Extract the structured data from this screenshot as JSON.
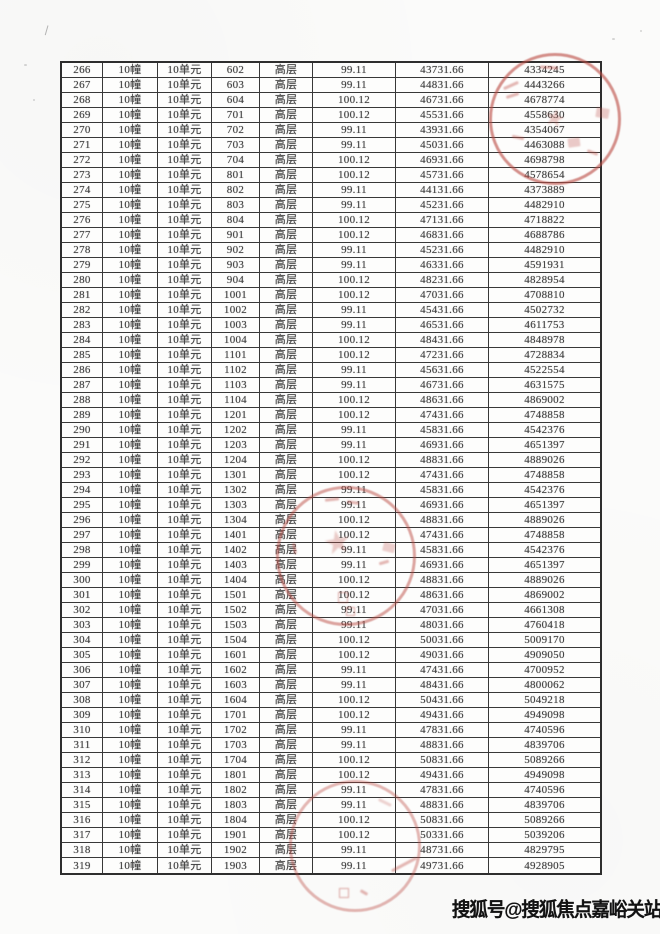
{
  "watermark": {
    "text": "搜狐号@搜狐焦点嘉峪关站"
  },
  "seal": {
    "color": "#bb4c44"
  },
  "icons": {
    "star": "★"
  },
  "table": {
    "rows": [
      [
        "266",
        "10幢",
        "10单元",
        "602",
        "高层",
        "99.11",
        "43731.66",
        "4334245"
      ],
      [
        "267",
        "10幢",
        "10单元",
        "603",
        "高层",
        "99.11",
        "44831.66",
        "4443266"
      ],
      [
        "268",
        "10幢",
        "10单元",
        "604",
        "高层",
        "100.12",
        "46731.66",
        "4678774"
      ],
      [
        "269",
        "10幢",
        "10单元",
        "701",
        "高层",
        "100.12",
        "45531.66",
        "4558630"
      ],
      [
        "270",
        "10幢",
        "10单元",
        "702",
        "高层",
        "99.11",
        "43931.66",
        "4354067"
      ],
      [
        "271",
        "10幢",
        "10单元",
        "703",
        "高层",
        "99.11",
        "45031.66",
        "4463088"
      ],
      [
        "272",
        "10幢",
        "10单元",
        "704",
        "高层",
        "100.12",
        "46931.66",
        "4698798"
      ],
      [
        "273",
        "10幢",
        "10单元",
        "801",
        "高层",
        "100.12",
        "45731.66",
        "4578654"
      ],
      [
        "274",
        "10幢",
        "10单元",
        "802",
        "高层",
        "99.11",
        "44131.66",
        "4373889"
      ],
      [
        "275",
        "10幢",
        "10单元",
        "803",
        "高层",
        "99.11",
        "45231.66",
        "4482910"
      ],
      [
        "276",
        "10幢",
        "10单元",
        "804",
        "高层",
        "100.12",
        "47131.66",
        "4718822"
      ],
      [
        "277",
        "10幢",
        "10单元",
        "901",
        "高层",
        "100.12",
        "46831.66",
        "4688786"
      ],
      [
        "278",
        "10幢",
        "10单元",
        "902",
        "高层",
        "99.11",
        "45231.66",
        "4482910"
      ],
      [
        "279",
        "10幢",
        "10单元",
        "903",
        "高层",
        "99.11",
        "46331.66",
        "4591931"
      ],
      [
        "280",
        "10幢",
        "10单元",
        "904",
        "高层",
        "100.12",
        "48231.66",
        "4828954"
      ],
      [
        "281",
        "10幢",
        "10单元",
        "1001",
        "高层",
        "100.12",
        "47031.66",
        "4708810"
      ],
      [
        "282",
        "10幢",
        "10单元",
        "1002",
        "高层",
        "99.11",
        "45431.66",
        "4502732"
      ],
      [
        "283",
        "10幢",
        "10单元",
        "1003",
        "高层",
        "99.11",
        "46531.66",
        "4611753"
      ],
      [
        "284",
        "10幢",
        "10单元",
        "1004",
        "高层",
        "100.12",
        "48431.66",
        "4848978"
      ],
      [
        "285",
        "10幢",
        "10单元",
        "1101",
        "高层",
        "100.12",
        "47231.66",
        "4728834"
      ],
      [
        "286",
        "10幢",
        "10单元",
        "1102",
        "高层",
        "99.11",
        "45631.66",
        "4522554"
      ],
      [
        "287",
        "10幢",
        "10单元",
        "1103",
        "高层",
        "99.11",
        "46731.66",
        "4631575"
      ],
      [
        "288",
        "10幢",
        "10单元",
        "1104",
        "高层",
        "100.12",
        "48631.66",
        "4869002"
      ],
      [
        "289",
        "10幢",
        "10单元",
        "1201",
        "高层",
        "100.12",
        "47431.66",
        "4748858"
      ],
      [
        "290",
        "10幢",
        "10单元",
        "1202",
        "高层",
        "99.11",
        "45831.66",
        "4542376"
      ],
      [
        "291",
        "10幢",
        "10单元",
        "1203",
        "高层",
        "99.11",
        "46931.66",
        "4651397"
      ],
      [
        "292",
        "10幢",
        "10单元",
        "1204",
        "高层",
        "100.12",
        "48831.66",
        "4889026"
      ],
      [
        "293",
        "10幢",
        "10单元",
        "1301",
        "高层",
        "100.12",
        "47431.66",
        "4748858"
      ],
      [
        "294",
        "10幢",
        "10单元",
        "1302",
        "高层",
        "99.11",
        "45831.66",
        "4542376"
      ],
      [
        "295",
        "10幢",
        "10单元",
        "1303",
        "高层",
        "99.11",
        "46931.66",
        "4651397"
      ],
      [
        "296",
        "10幢",
        "10单元",
        "1304",
        "高层",
        "100.12",
        "48831.66",
        "4889026"
      ],
      [
        "297",
        "10幢",
        "10单元",
        "1401",
        "高层",
        "100.12",
        "47431.66",
        "4748858"
      ],
      [
        "298",
        "10幢",
        "10单元",
        "1402",
        "高层",
        "99.11",
        "45831.66",
        "4542376"
      ],
      [
        "299",
        "10幢",
        "10单元",
        "1403",
        "高层",
        "99.11",
        "46931.66",
        "4651397"
      ],
      [
        "300",
        "10幢",
        "10单元",
        "1404",
        "高层",
        "100.12",
        "48831.66",
        "4889026"
      ],
      [
        "301",
        "10幢",
        "10单元",
        "1501",
        "高层",
        "100.12",
        "48631.66",
        "4869002"
      ],
      [
        "302",
        "10幢",
        "10单元",
        "1502",
        "高层",
        "99.11",
        "47031.66",
        "4661308"
      ],
      [
        "303",
        "10幢",
        "10单元",
        "1503",
        "高层",
        "99.11",
        "48031.66",
        "4760418"
      ],
      [
        "304",
        "10幢",
        "10单元",
        "1504",
        "高层",
        "100.12",
        "50031.66",
        "5009170"
      ],
      [
        "305",
        "10幢",
        "10单元",
        "1601",
        "高层",
        "100.12",
        "49031.66",
        "4909050"
      ],
      [
        "306",
        "10幢",
        "10单元",
        "1602",
        "高层",
        "99.11",
        "47431.66",
        "4700952"
      ],
      [
        "307",
        "10幢",
        "10单元",
        "1603",
        "高层",
        "99.11",
        "48431.66",
        "4800062"
      ],
      [
        "308",
        "10幢",
        "10单元",
        "1604",
        "高层",
        "100.12",
        "50431.66",
        "5049218"
      ],
      [
        "309",
        "10幢",
        "10单元",
        "1701",
        "高层",
        "100.12",
        "49431.66",
        "4949098"
      ],
      [
        "310",
        "10幢",
        "10单元",
        "1702",
        "高层",
        "99.11",
        "47831.66",
        "4740596"
      ],
      [
        "311",
        "10幢",
        "10单元",
        "1703",
        "高层",
        "99.11",
        "48831.66",
        "4839706"
      ],
      [
        "312",
        "10幢",
        "10单元",
        "1704",
        "高层",
        "100.12",
        "50831.66",
        "5089266"
      ],
      [
        "313",
        "10幢",
        "10单元",
        "1801",
        "高层",
        "100.12",
        "49431.66",
        "4949098"
      ],
      [
        "314",
        "10幢",
        "10单元",
        "1802",
        "高层",
        "99.11",
        "47831.66",
        "4740596"
      ],
      [
        "315",
        "10幢",
        "10单元",
        "1803",
        "高层",
        "99.11",
        "48831.66",
        "4839706"
      ],
      [
        "316",
        "10幢",
        "10单元",
        "1804",
        "高层",
        "100.12",
        "50831.66",
        "5089266"
      ],
      [
        "317",
        "10幢",
        "10单元",
        "1901",
        "高层",
        "100.12",
        "50331.66",
        "5039206"
      ],
      [
        "318",
        "10幢",
        "10单元",
        "1902",
        "高层",
        "99.11",
        "48731.66",
        "4829795"
      ],
      [
        "319",
        "10幢",
        "10单元",
        "1903",
        "高层",
        "99.11",
        "49731.66",
        "4928905"
      ]
    ]
  }
}
